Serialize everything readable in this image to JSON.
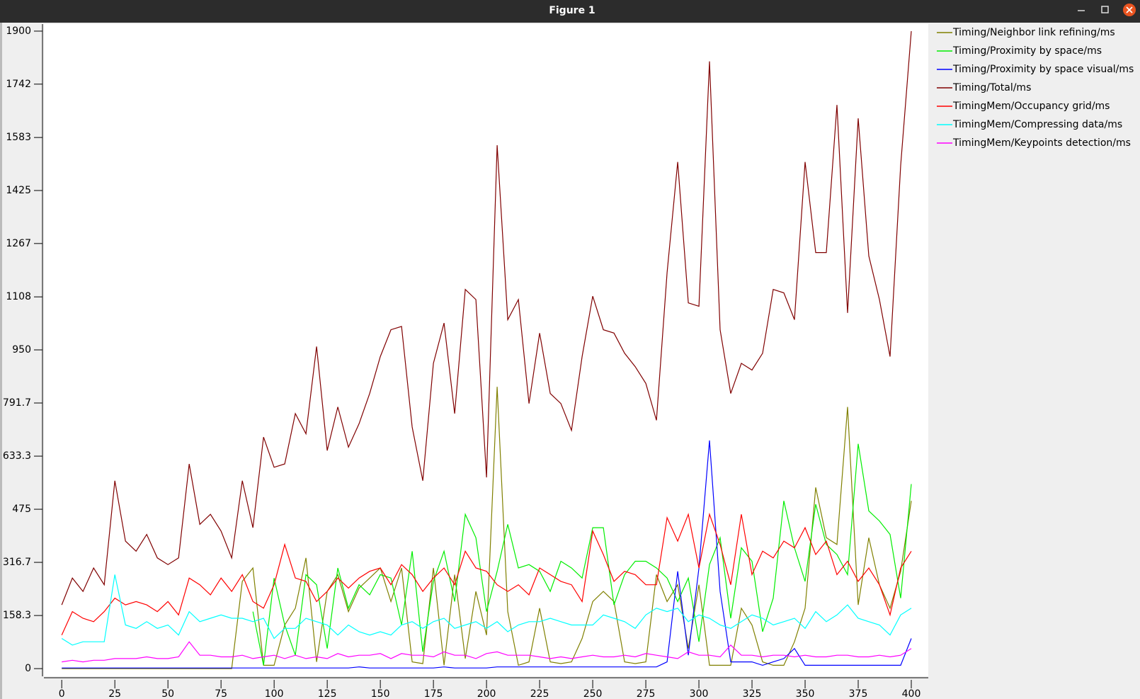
{
  "window_title": "Figure 1",
  "chart_data": {
    "type": "line",
    "x": [
      0,
      5,
      10,
      15,
      20,
      25,
      30,
      35,
      40,
      45,
      50,
      55,
      60,
      65,
      70,
      75,
      80,
      85,
      90,
      95,
      100,
      105,
      110,
      115,
      120,
      125,
      130,
      135,
      140,
      145,
      150,
      155,
      160,
      165,
      170,
      175,
      180,
      185,
      190,
      195,
      200,
      205,
      210,
      215,
      220,
      225,
      230,
      235,
      240,
      245,
      250,
      255,
      260,
      265,
      270,
      275,
      280,
      285,
      290,
      295,
      300,
      305,
      310,
      315,
      320,
      325,
      330,
      335,
      340,
      345,
      350,
      355,
      360,
      365,
      370,
      375,
      380,
      385,
      390,
      395,
      400
    ],
    "xlim": [
      -8.4,
      408
    ],
    "xticks": [
      0,
      25,
      50,
      75,
      100,
      125,
      150,
      175,
      200,
      225,
      250,
      275,
      300,
      325,
      350,
      375,
      400
    ],
    "ylim": [
      -23,
      1921
    ],
    "yticks": [
      0,
      158.3,
      316.7,
      475,
      633.3,
      791.7,
      950,
      1108,
      1267,
      1425,
      1583,
      1742,
      1900
    ],
    "series": [
      {
        "name": "Timing/Neighbor link refining/ms",
        "color": "#808000",
        "values": [
          0,
          0,
          0,
          0,
          0,
          0,
          0,
          0,
          0,
          0,
          0,
          0,
          0,
          0,
          0,
          0,
          0,
          260,
          300,
          10,
          10,
          130,
          180,
          330,
          20,
          230,
          280,
          170,
          240,
          270,
          300,
          200,
          300,
          20,
          15,
          300,
          10,
          280,
          30,
          230,
          100,
          840,
          170,
          10,
          20,
          180,
          20,
          15,
          20,
          90,
          200,
          230,
          200,
          20,
          15,
          20,
          280,
          200,
          250,
          60,
          250,
          10,
          10,
          10,
          180,
          130,
          20,
          10,
          10,
          80,
          180,
          540,
          390,
          370,
          780,
          190,
          390,
          250,
          180,
          290,
          500
        ]
      },
      {
        "name": "Timing/Proximity by space/ms",
        "color": "#00ee00",
        "values": [
          null,
          null,
          null,
          null,
          null,
          null,
          null,
          null,
          null,
          null,
          null,
          null,
          null,
          null,
          null,
          null,
          null,
          null,
          170,
          10,
          270,
          130,
          40,
          280,
          250,
          60,
          300,
          180,
          250,
          220,
          280,
          270,
          130,
          350,
          50,
          260,
          350,
          200,
          460,
          390,
          170,
          290,
          430,
          300,
          310,
          290,
          230,
          320,
          300,
          270,
          420,
          420,
          190,
          280,
          320,
          320,
          300,
          270,
          200,
          270,
          80,
          310,
          390,
          150,
          360,
          320,
          110,
          210,
          500,
          360,
          260,
          490,
          370,
          340,
          280,
          670,
          470,
          440,
          400,
          210,
          550
        ]
      },
      {
        "name": "Timing/Proximity by space visual/ms",
        "color": "#0000ff",
        "values": [
          2,
          2,
          2,
          2,
          2,
          2,
          2,
          2,
          2,
          2,
          2,
          2,
          2,
          2,
          2,
          2,
          2,
          2,
          2,
          2,
          2,
          2,
          2,
          2,
          2,
          2,
          2,
          2,
          5,
          2,
          2,
          2,
          2,
          2,
          2,
          2,
          5,
          2,
          2,
          2,
          2,
          5,
          5,
          5,
          5,
          5,
          5,
          5,
          5,
          5,
          5,
          5,
          5,
          5,
          5,
          5,
          5,
          20,
          290,
          40,
          300,
          680,
          230,
          20,
          20,
          20,
          10,
          20,
          30,
          60,
          10,
          10,
          10,
          10,
          10,
          10,
          10,
          10,
          10,
          10,
          90
        ]
      },
      {
        "name": "Timing/Total/ms",
        "color": "#800000",
        "values": [
          190,
          270,
          230,
          300,
          250,
          560,
          380,
          350,
          400,
          330,
          310,
          330,
          610,
          430,
          460,
          410,
          330,
          560,
          420,
          690,
          600,
          610,
          760,
          700,
          960,
          650,
          780,
          660,
          730,
          820,
          930,
          1010,
          1020,
          720,
          560,
          910,
          1030,
          760,
          1130,
          1100,
          570,
          1560,
          1040,
          1100,
          790,
          1000,
          820,
          790,
          710,
          930,
          1110,
          1010,
          1000,
          940,
          900,
          850,
          740,
          1180,
          1510,
          1090,
          1080,
          1810,
          1010,
          820,
          910,
          890,
          940,
          1130,
          1120,
          1040,
          1510,
          1240,
          1240,
          1680,
          1060,
          1640,
          1230,
          1100,
          930,
          1500,
          1900
        ]
      },
      {
        "name": "TimingMem/Occupancy grid/ms",
        "color": "#ff0000",
        "values": [
          100,
          170,
          150,
          140,
          170,
          210,
          190,
          200,
          190,
          170,
          200,
          160,
          270,
          250,
          220,
          270,
          230,
          280,
          200,
          180,
          250,
          370,
          270,
          260,
          200,
          230,
          270,
          240,
          270,
          290,
          300,
          250,
          310,
          280,
          230,
          270,
          300,
          250,
          350,
          300,
          290,
          250,
          230,
          250,
          220,
          300,
          280,
          260,
          250,
          200,
          410,
          340,
          260,
          290,
          280,
          250,
          250,
          450,
          380,
          460,
          300,
          460,
          370,
          250,
          460,
          280,
          350,
          330,
          380,
          360,
          420,
          340,
          380,
          280,
          320,
          260,
          300,
          250,
          160,
          300,
          350
        ]
      },
      {
        "name": "TimingMem/Compressing data/ms",
        "color": "#00ffff",
        "values": [
          90,
          70,
          80,
          80,
          80,
          280,
          130,
          120,
          140,
          120,
          130,
          100,
          170,
          140,
          150,
          160,
          150,
          150,
          140,
          150,
          90,
          120,
          120,
          150,
          140,
          130,
          100,
          130,
          110,
          100,
          110,
          100,
          130,
          140,
          120,
          140,
          150,
          120,
          130,
          140,
          120,
          140,
          110,
          130,
          140,
          140,
          150,
          140,
          130,
          130,
          130,
          160,
          150,
          140,
          120,
          160,
          180,
          170,
          180,
          140,
          160,
          150,
          130,
          120,
          140,
          160,
          150,
          130,
          140,
          150,
          120,
          170,
          140,
          160,
          190,
          150,
          140,
          130,
          100,
          160,
          180
        ]
      },
      {
        "name": "TimingMem/Keypoints detection/ms",
        "color": "#ff00ff",
        "values": [
          20,
          25,
          20,
          25,
          25,
          30,
          30,
          30,
          35,
          30,
          30,
          35,
          80,
          40,
          40,
          35,
          35,
          40,
          30,
          35,
          40,
          30,
          40,
          30,
          35,
          30,
          45,
          35,
          40,
          40,
          45,
          30,
          45,
          40,
          40,
          35,
          50,
          40,
          40,
          30,
          45,
          50,
          40,
          40,
          40,
          35,
          30,
          35,
          30,
          35,
          40,
          35,
          35,
          40,
          35,
          45,
          40,
          35,
          30,
          50,
          40,
          40,
          35,
          70,
          40,
          40,
          35,
          40,
          40,
          35,
          40,
          35,
          35,
          40,
          40,
          35,
          35,
          40,
          35,
          40,
          60
        ]
      }
    ]
  }
}
